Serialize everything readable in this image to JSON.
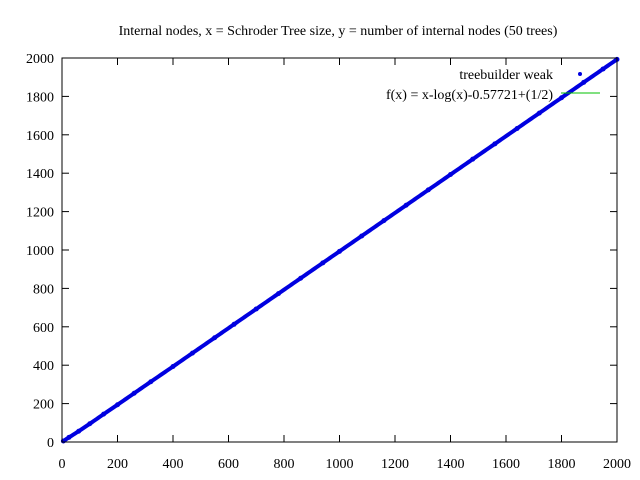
{
  "chart_data": {
    "type": "scatter",
    "title": "Internal nodes, x = Schroder Tree size, y = number of internal nodes (50 trees)",
    "xlabel": "",
    "ylabel": "",
    "xlim": [
      0,
      2000
    ],
    "ylim": [
      0,
      2000
    ],
    "xticks": [
      "0",
      "200",
      "400",
      "600",
      "800",
      "1000",
      "1200",
      "1400",
      "1600",
      "1800",
      "2000"
    ],
    "yticks": [
      "0",
      "200",
      "400",
      "600",
      "800",
      "1000",
      "1200",
      "1400",
      "1600",
      "1800",
      "2000"
    ],
    "grid": false,
    "legend_position": "top-right",
    "series": [
      {
        "name": "treebuilder weak",
        "kind": "points",
        "color": "#0000e0",
        "x": [
          5,
          25,
          60,
          100,
          150,
          200,
          260,
          320,
          400,
          470,
          550,
          620,
          700,
          780,
          860,
          940,
          1000,
          1080,
          1160,
          1240,
          1320,
          1400,
          1480,
          1560,
          1640,
          1720,
          1800,
          1880,
          1950,
          2000
        ],
        "y": [
          5,
          24,
          56,
          95,
          145,
          194,
          254,
          314,
          393,
          463,
          543,
          613,
          693,
          773,
          853,
          933,
          993,
          1073,
          1153,
          1233,
          1313,
          1393,
          1473,
          1553,
          1633,
          1713,
          1793,
          1873,
          1943,
          1993
        ]
      },
      {
        "name": "f(x) = x-log(x)-0.57721+(1/2)",
        "kind": "line",
        "color": "#00c000"
      }
    ]
  }
}
